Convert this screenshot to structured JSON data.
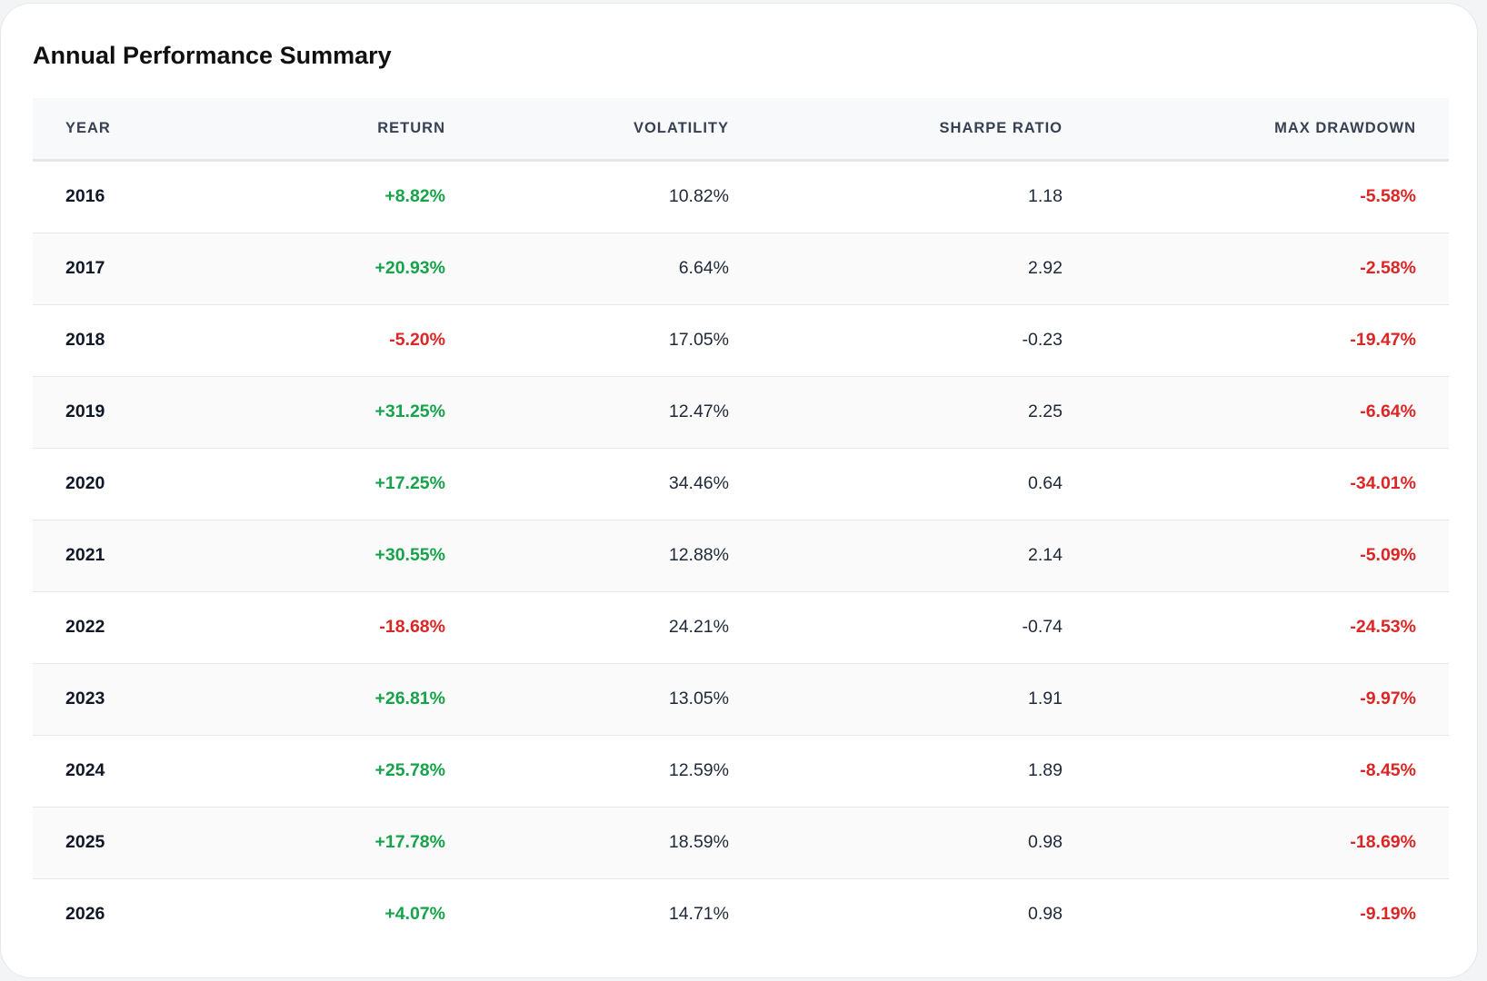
{
  "title": "Annual Performance Summary",
  "colors": {
    "positive": "#16a34a",
    "negative": "#dc2626",
    "header_bg": "#f8f9fb"
  },
  "columns": [
    "YEAR",
    "RETURN",
    "VOLATILITY",
    "SHARPE RATIO",
    "MAX DRAWDOWN"
  ],
  "rows": [
    {
      "year": "2016",
      "return": "+8.82%",
      "volatility": "10.82%",
      "sharpe": "1.18",
      "drawdown": "-5.58%"
    },
    {
      "year": "2017",
      "return": "+20.93%",
      "volatility": "6.64%",
      "sharpe": "2.92",
      "drawdown": "-2.58%"
    },
    {
      "year": "2018",
      "return": "-5.20%",
      "volatility": "17.05%",
      "sharpe": "-0.23",
      "drawdown": "-19.47%"
    },
    {
      "year": "2019",
      "return": "+31.25%",
      "volatility": "12.47%",
      "sharpe": "2.25",
      "drawdown": "-6.64%"
    },
    {
      "year": "2020",
      "return": "+17.25%",
      "volatility": "34.46%",
      "sharpe": "0.64",
      "drawdown": "-34.01%"
    },
    {
      "year": "2021",
      "return": "+30.55%",
      "volatility": "12.88%",
      "sharpe": "2.14",
      "drawdown": "-5.09%"
    },
    {
      "year": "2022",
      "return": "-18.68%",
      "volatility": "24.21%",
      "sharpe": "-0.74",
      "drawdown": "-24.53%"
    },
    {
      "year": "2023",
      "return": "+26.81%",
      "volatility": "13.05%",
      "sharpe": "1.91",
      "drawdown": "-9.97%"
    },
    {
      "year": "2024",
      "return": "+25.78%",
      "volatility": "12.59%",
      "sharpe": "1.89",
      "drawdown": "-8.45%"
    },
    {
      "year": "2025",
      "return": "+17.78%",
      "volatility": "18.59%",
      "sharpe": "0.98",
      "drawdown": "-18.69%"
    },
    {
      "year": "2026",
      "return": "+4.07%",
      "volatility": "14.71%",
      "sharpe": "0.98",
      "drawdown": "-9.19%"
    }
  ]
}
